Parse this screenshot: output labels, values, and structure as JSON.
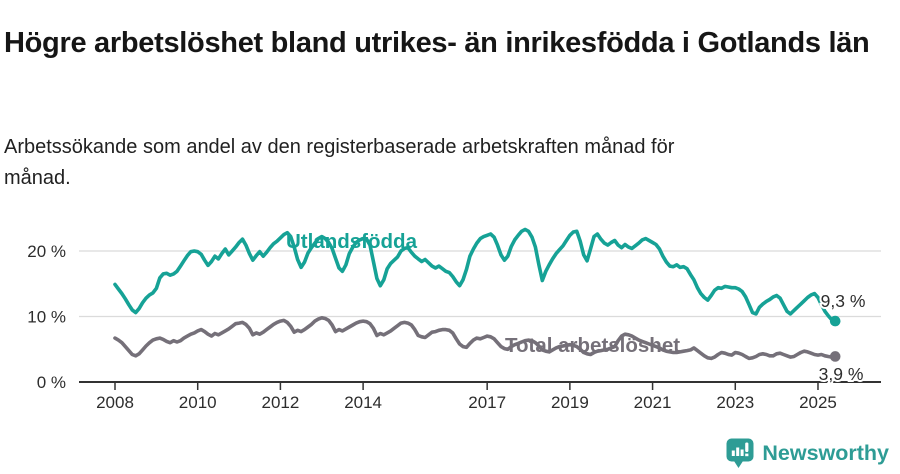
{
  "header": {
    "title": "Högre arbetslöshet bland utrikes- än inrikesfödda i Gotlands län",
    "subtitle": "Arbetssökande som andel av den registerbaserade arbetskraften månad för månad."
  },
  "chart_data": {
    "type": "line",
    "x_start": "2008-01",
    "x_end": "2025-06",
    "frequency": "monthly",
    "ylim": [
      0,
      25
    ],
    "grid": "horizontal",
    "legend": "inline-labels",
    "y_ticks": [
      {
        "v": 0,
        "label": "0 %"
      },
      {
        "v": 10,
        "label": "10 %"
      },
      {
        "v": 20,
        "label": "20 %"
      }
    ],
    "x_ticks": [
      {
        "year": 2008,
        "label": "2008"
      },
      {
        "year": 2010,
        "label": "2010"
      },
      {
        "year": 2012,
        "label": "2012"
      },
      {
        "year": 2014,
        "label": "2014"
      },
      {
        "year": 2017,
        "label": "2017"
      },
      {
        "year": 2019,
        "label": "2019"
      },
      {
        "year": 2021,
        "label": "2021"
      },
      {
        "year": 2023,
        "label": "2023"
      },
      {
        "year": 2025,
        "label": "2025"
      }
    ],
    "series": [
      {
        "name": "Utlandsfödda",
        "color": "#16A296",
        "end_label": "9,3 %",
        "end_value": 9.3,
        "values": [
          14.9,
          14.2,
          13.5,
          12.7,
          11.8,
          11.0,
          10.6,
          11.2,
          12.1,
          12.8,
          13.3,
          13.6,
          14.3,
          15.9,
          16.5,
          16.6,
          16.3,
          16.5,
          16.9,
          17.7,
          18.5,
          19.3,
          19.9,
          20.0,
          19.9,
          19.5,
          18.6,
          17.8,
          18.4,
          19.2,
          18.8,
          19.6,
          20.3,
          19.4,
          20.0,
          20.6,
          21.3,
          21.8,
          20.9,
          19.6,
          18.6,
          19.3,
          19.9,
          19.2,
          19.8,
          20.5,
          21.1,
          21.5,
          22.0,
          22.5,
          22.8,
          22.2,
          20.6,
          18.7,
          17.5,
          18.3,
          19.7,
          20.5,
          21.2,
          21.9,
          22.2,
          21.9,
          21.3,
          20.4,
          18.9,
          17.4,
          16.9,
          17.9,
          19.6,
          20.6,
          21.3,
          21.7,
          21.9,
          21.8,
          20.9,
          18.4,
          15.8,
          14.7,
          15.6,
          17.3,
          18.1,
          18.6,
          19.1,
          20.0,
          20.4,
          20.5,
          19.8,
          19.2,
          18.8,
          18.4,
          18.7,
          18.2,
          17.7,
          17.4,
          17.7,
          17.3,
          16.9,
          16.7,
          16.1,
          15.3,
          14.7,
          15.6,
          17.2,
          19.2,
          20.3,
          21.2,
          21.9,
          22.2,
          22.4,
          22.6,
          22.1,
          20.9,
          19.4,
          18.6,
          19.2,
          20.7,
          21.7,
          22.4,
          23.0,
          23.3,
          23.0,
          22.1,
          20.6,
          17.9,
          15.5,
          16.9,
          17.9,
          18.8,
          19.6,
          20.2,
          20.8,
          21.6,
          22.4,
          22.9,
          23.0,
          21.5,
          19.4,
          18.5,
          20.3,
          22.2,
          22.6,
          21.8,
          21.2,
          20.9,
          21.3,
          21.6,
          20.9,
          20.5,
          21.0,
          20.6,
          20.4,
          20.8,
          21.2,
          21.7,
          21.9,
          21.6,
          21.3,
          21.0,
          20.3,
          19.2,
          18.3,
          17.7,
          17.6,
          17.9,
          17.5,
          17.6,
          17.3,
          16.4,
          15.6,
          14.4,
          13.5,
          12.9,
          12.5,
          13.2,
          14.0,
          14.4,
          14.3,
          14.6,
          14.5,
          14.4,
          14.4,
          14.2,
          13.8,
          13.0,
          11.8,
          10.6,
          10.4,
          11.4,
          11.9,
          12.3,
          12.6,
          13.0,
          13.2,
          12.8,
          11.8,
          10.8,
          10.4,
          10.9,
          11.4,
          11.9,
          12.4,
          12.9,
          13.3,
          13.5,
          12.9,
          11.8,
          10.8,
          10.1,
          9.5,
          9.3
        ]
      },
      {
        "name": "Total arbetslöshet",
        "color": "#757079",
        "end_label": "3,9 %",
        "end_value": 3.9,
        "values": [
          6.7,
          6.4,
          6.0,
          5.4,
          4.8,
          4.2,
          4.0,
          4.3,
          4.9,
          5.5,
          6.0,
          6.4,
          6.6,
          6.7,
          6.5,
          6.2,
          6.0,
          6.3,
          6.1,
          6.3,
          6.7,
          7.0,
          7.3,
          7.5,
          7.8,
          8.0,
          7.7,
          7.3,
          7.0,
          7.4,
          7.2,
          7.5,
          7.8,
          8.1,
          8.5,
          8.9,
          9.0,
          9.1,
          8.8,
          8.2,
          7.2,
          7.5,
          7.3,
          7.6,
          8.0,
          8.4,
          8.8,
          9.1,
          9.3,
          9.4,
          9.1,
          8.5,
          7.6,
          7.9,
          7.7,
          8.0,
          8.4,
          8.8,
          9.3,
          9.6,
          9.8,
          9.7,
          9.4,
          8.7,
          7.7,
          8.0,
          7.8,
          8.1,
          8.4,
          8.7,
          9.0,
          9.2,
          9.3,
          9.2,
          8.9,
          8.2,
          7.1,
          7.4,
          7.2,
          7.5,
          7.8,
          8.2,
          8.6,
          9.0,
          9.1,
          9.0,
          8.7,
          8.0,
          7.1,
          6.9,
          6.8,
          7.2,
          7.6,
          7.7,
          7.9,
          8.0,
          8.0,
          7.9,
          7.5,
          6.6,
          5.8,
          5.4,
          5.3,
          5.9,
          6.4,
          6.7,
          6.6,
          6.8,
          7.0,
          6.9,
          6.6,
          6.0,
          5.4,
          5.1,
          5.0,
          5.4,
          5.7,
          5.9,
          6.1,
          6.3,
          6.4,
          6.3,
          6.0,
          5.5,
          4.9,
          4.7,
          4.6,
          4.9,
          5.2,
          5.4,
          5.5,
          5.6,
          5.7,
          5.6,
          5.4,
          5.0,
          4.5,
          4.3,
          4.2,
          4.5,
          4.7,
          4.8,
          4.9,
          5.0,
          5.2,
          5.4,
          6.3,
          7.0,
          7.3,
          7.2,
          7.0,
          6.7,
          6.4,
          6.2,
          6.0,
          5.8,
          5.6,
          5.4,
          5.2,
          4.9,
          4.7,
          4.6,
          4.5,
          4.5,
          4.6,
          4.7,
          4.8,
          4.9,
          5.2,
          4.8,
          4.4,
          4.0,
          3.7,
          3.6,
          3.8,
          4.2,
          4.5,
          4.4,
          4.2,
          4.1,
          4.5,
          4.4,
          4.2,
          3.9,
          3.6,
          3.7,
          3.9,
          4.2,
          4.3,
          4.2,
          4.0,
          4.0,
          4.3,
          4.4,
          4.2,
          4.0,
          3.8,
          3.9,
          4.2,
          4.5,
          4.7,
          4.6,
          4.4,
          4.2,
          4.1,
          4.2,
          4.0,
          3.9,
          3.8,
          3.9
        ]
      }
    ]
  },
  "footer": {
    "brand": "Newsworthy",
    "logo_icon": "bar-chart-speech-bubble-icon"
  }
}
